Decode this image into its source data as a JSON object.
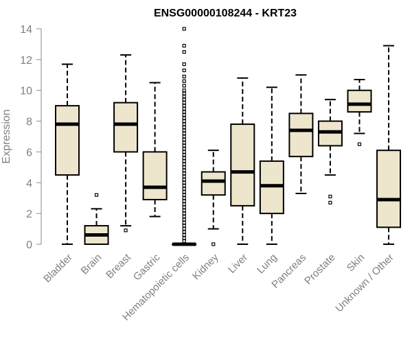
{
  "chart_data": {
    "type": "boxplot",
    "title": "ENSG00000108244 - KRT23",
    "xlabel": "",
    "ylabel": "Expression",
    "ylim": [
      0,
      14
    ],
    "yticks": [
      0,
      2,
      4,
      6,
      8,
      10,
      12,
      14
    ],
    "grid": false,
    "box_color": "#ede6cc",
    "categories": [
      "Bladder",
      "Brain",
      "Breast",
      "Gastric",
      "Hematopoietic cells",
      "Kidney",
      "Liver",
      "Lung",
      "Pancreas",
      "Prostate",
      "Skin",
      "Unknown / Other"
    ],
    "boxes": [
      {
        "name": "Bladder",
        "whisker_low": 0,
        "q1": 4.5,
        "median": 7.8,
        "q3": 9.0,
        "whisker_high": 11.7,
        "outliers": []
      },
      {
        "name": "Brain",
        "whisker_low": 0,
        "q1": 0.0,
        "median": 0.6,
        "q3": 1.2,
        "whisker_high": 2.3,
        "outliers": [
          3.2
        ]
      },
      {
        "name": "Breast",
        "whisker_low": 1.2,
        "q1": 6.0,
        "median": 7.8,
        "q3": 9.2,
        "whisker_high": 12.3,
        "outliers": [
          0.9
        ]
      },
      {
        "name": "Gastric",
        "whisker_low": 1.8,
        "q1": 2.9,
        "median": 3.7,
        "q3": 6.0,
        "whisker_high": 10.5,
        "outliers": []
      },
      {
        "name": "Hematopoietic cells",
        "whisker_low": 0,
        "q1": 0.0,
        "median": 0.0,
        "q3": 0.0,
        "whisker_high": 0.0,
        "outliers": [
          0.2,
          0.4,
          0.6,
          0.8,
          1.0,
          1.2,
          1.4,
          1.6,
          1.8,
          2.0,
          2.2,
          2.4,
          2.6,
          2.8,
          3.0,
          3.2,
          3.4,
          3.6,
          3.8,
          4.0,
          4.2,
          4.4,
          4.6,
          4.8,
          5.0,
          5.2,
          5.4,
          5.6,
          5.8,
          6.0,
          6.2,
          6.4,
          6.6,
          6.8,
          7.0,
          7.2,
          7.4,
          7.6,
          7.8,
          8.0,
          8.2,
          8.4,
          8.6,
          8.8,
          9.0,
          9.2,
          9.4,
          9.6,
          9.8,
          10.0,
          10.3,
          10.6,
          10.9,
          11.3,
          11.7,
          12.5,
          12.9,
          14.0
        ]
      },
      {
        "name": "Kidney",
        "whisker_low": 1.0,
        "q1": 3.2,
        "median": 4.1,
        "q3": 4.7,
        "whisker_high": 6.1,
        "outliers": [
          0
        ]
      },
      {
        "name": "Liver",
        "whisker_low": 0,
        "q1": 2.5,
        "median": 4.7,
        "q3": 7.8,
        "whisker_high": 10.8,
        "outliers": []
      },
      {
        "name": "Lung",
        "whisker_low": 0,
        "q1": 2.0,
        "median": 3.8,
        "q3": 5.4,
        "whisker_high": 10.2,
        "outliers": []
      },
      {
        "name": "Pancreas",
        "whisker_low": 3.3,
        "q1": 5.7,
        "median": 7.4,
        "q3": 8.5,
        "whisker_high": 11.0,
        "outliers": []
      },
      {
        "name": "Prostate",
        "whisker_low": 4.5,
        "q1": 6.4,
        "median": 7.3,
        "q3": 8.0,
        "whisker_high": 9.4,
        "outliers": [
          3.1,
          2.7
        ]
      },
      {
        "name": "Skin",
        "whisker_low": 7.2,
        "q1": 8.6,
        "median": 9.1,
        "q3": 10.0,
        "whisker_high": 10.7,
        "outliers": [
          6.5
        ]
      },
      {
        "name": "Unknown / Other",
        "whisker_low": 0,
        "q1": 1.1,
        "median": 2.9,
        "q3": 6.1,
        "whisker_high": 12.9,
        "outliers": []
      }
    ]
  }
}
